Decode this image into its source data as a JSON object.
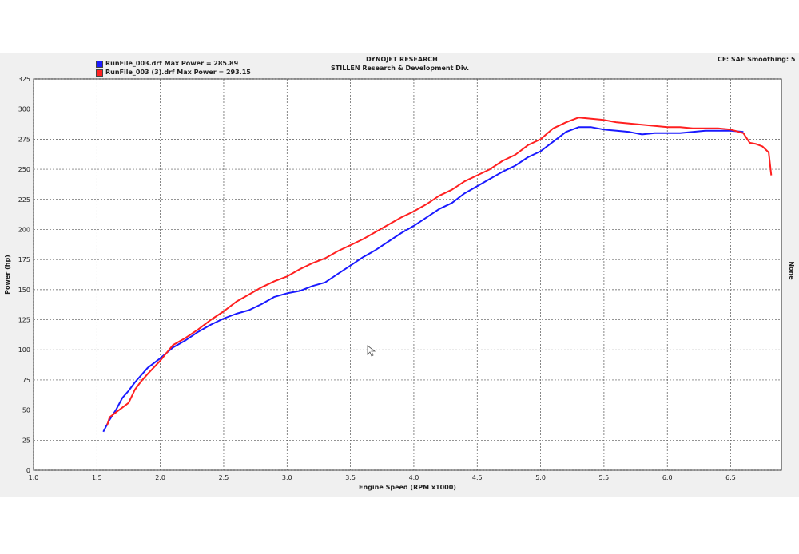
{
  "header": {
    "title": "DYNOJET RESEARCH",
    "subtitle": "STILLEN Research & Development Div.",
    "settings": "CF: SAE  Smoothing: 5"
  },
  "legend": [
    {
      "label": "RunFile_003.drf Max Power = 285.89",
      "color": "#1a1aff"
    },
    {
      "label": "RunFile_003 (3).drf Max Power = 293.15",
      "color": "#ff2020"
    }
  ],
  "right_axis_label": "None",
  "cursor_icon": "mouse-pointer-icon",
  "chart_data": {
    "type": "line",
    "xlabel": "Engine Speed (RPM x1000)",
    "ylabel": "Power (hp)",
    "xlim": [
      1.0,
      6.9
    ],
    "ylim": [
      0,
      325
    ],
    "xticks": [
      1.0,
      1.5,
      2.0,
      2.5,
      3.0,
      3.5,
      4.0,
      4.5,
      5.0,
      5.5,
      6.0,
      6.5
    ],
    "yticks": [
      0,
      25,
      50,
      75,
      100,
      125,
      150,
      175,
      200,
      225,
      250,
      275,
      300,
      325
    ],
    "grid": true,
    "legend_position": "top-left",
    "series": [
      {
        "name": "RunFile_003.drf Max Power = 285.89",
        "color": "#1a1aff",
        "x": [
          1.55,
          1.6,
          1.65,
          1.7,
          1.75,
          1.8,
          1.85,
          1.9,
          2.0,
          2.1,
          2.2,
          2.3,
          2.4,
          2.5,
          2.6,
          2.7,
          2.8,
          2.9,
          3.0,
          3.1,
          3.2,
          3.3,
          3.4,
          3.5,
          3.6,
          3.7,
          3.8,
          3.9,
          4.0,
          4.1,
          4.2,
          4.3,
          4.4,
          4.5,
          4.6,
          4.7,
          4.8,
          4.9,
          5.0,
          5.1,
          5.2,
          5.3,
          5.4,
          5.45,
          5.5,
          5.6,
          5.7,
          5.8,
          5.9,
          6.0,
          6.1,
          6.2,
          6.3,
          6.4,
          6.5,
          6.6
        ],
        "y": [
          32,
          42,
          50,
          60,
          66,
          73,
          79,
          85,
          93,
          102,
          108,
          115,
          121,
          126,
          130,
          133,
          138,
          144,
          147,
          149,
          153,
          156,
          163,
          170,
          177,
          183,
          190,
          197,
          203,
          210,
          217,
          222,
          230,
          236,
          242,
          248,
          253,
          260,
          265,
          273,
          281,
          285,
          285,
          284,
          283,
          282,
          281,
          279,
          280,
          280,
          280,
          281,
          282,
          282,
          282,
          281
        ]
      },
      {
        "name": "RunFile_003 (3).drf Max Power = 293.15",
        "color": "#ff2020",
        "x": [
          1.58,
          1.6,
          1.65,
          1.7,
          1.75,
          1.8,
          1.85,
          1.9,
          2.0,
          2.1,
          2.2,
          2.3,
          2.4,
          2.5,
          2.6,
          2.7,
          2.8,
          2.9,
          3.0,
          3.1,
          3.2,
          3.3,
          3.4,
          3.5,
          3.6,
          3.7,
          3.8,
          3.9,
          4.0,
          4.1,
          4.2,
          4.3,
          4.4,
          4.5,
          4.6,
          4.7,
          4.8,
          4.9,
          5.0,
          5.1,
          5.2,
          5.3,
          5.4,
          5.5,
          5.6,
          5.7,
          5.8,
          5.9,
          6.0,
          6.1,
          6.2,
          6.3,
          6.4,
          6.5,
          6.6,
          6.65,
          6.7,
          6.75,
          6.8,
          6.82
        ],
        "y": [
          37,
          44,
          48,
          52,
          56,
          67,
          74,
          80,
          91,
          104,
          110,
          117,
          125,
          132,
          140,
          146,
          152,
          157,
          161,
          167,
          172,
          176,
          182,
          187,
          192,
          198,
          204,
          210,
          215,
          221,
          228,
          233,
          240,
          245,
          250,
          257,
          262,
          270,
          275,
          284,
          289,
          293,
          292,
          291,
          289,
          288,
          287,
          286,
          285,
          285,
          284,
          284,
          284,
          283,
          280,
          272,
          271,
          269,
          264,
          245
        ]
      }
    ]
  }
}
